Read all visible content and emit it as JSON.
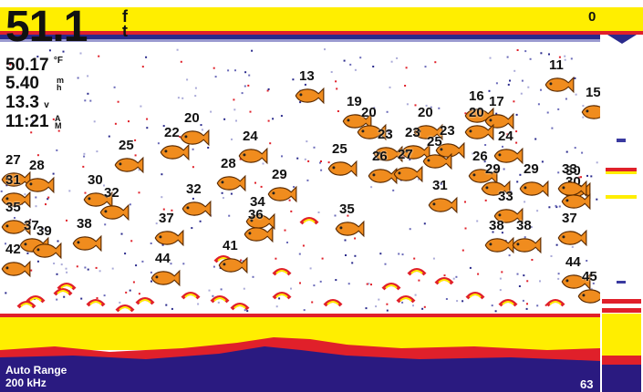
{
  "readouts": {
    "depth_value": "51.1",
    "depth_unit_top": "f",
    "depth_unit_bottom": "t",
    "temperature_value": "50.17",
    "temperature_unit": "°F",
    "speed_value": "5.40",
    "speed_unit_top": "m",
    "speed_unit_bottom": "h",
    "voltage_value": "13.3",
    "voltage_unit": "v",
    "time_value": "11:21",
    "time_unit_top": "A",
    "time_unit_bottom": "M"
  },
  "scale": {
    "top": "0",
    "bottom": "63"
  },
  "status": {
    "range_mode": "Auto Range",
    "frequency": "200 kHz"
  },
  "colors": {
    "surface_yellow": "#ffee00",
    "return_red": "#e0202a",
    "return_blue": "#2a2a8c",
    "fish_orange": "#f08c1e",
    "bottom_dark": "#2a1a80"
  },
  "fish_icon": "fish-icon",
  "fish": [
    {
      "depth": "13"
    },
    {
      "depth": "11"
    },
    {
      "depth": "15"
    },
    {
      "depth": "16"
    },
    {
      "depth": "17"
    },
    {
      "depth": "19"
    },
    {
      "depth": "20"
    },
    {
      "depth": "20"
    },
    {
      "depth": "20"
    },
    {
      "depth": "20"
    },
    {
      "depth": "22"
    },
    {
      "depth": "23"
    },
    {
      "depth": "23"
    },
    {
      "depth": "23"
    },
    {
      "depth": "24"
    },
    {
      "depth": "24"
    },
    {
      "depth": "25"
    },
    {
      "depth": "25"
    },
    {
      "depth": "25"
    },
    {
      "depth": "26"
    },
    {
      "depth": "26"
    },
    {
      "depth": "27"
    },
    {
      "depth": "27"
    },
    {
      "depth": "28"
    },
    {
      "depth": "28"
    },
    {
      "depth": "29"
    },
    {
      "depth": "29"
    },
    {
      "depth": "29"
    },
    {
      "depth": "30"
    },
    {
      "depth": "30"
    },
    {
      "depth": "30"
    },
    {
      "depth": "31"
    },
    {
      "depth": "31"
    },
    {
      "depth": "32"
    },
    {
      "depth": "32"
    },
    {
      "depth": "33"
    },
    {
      "depth": "33"
    },
    {
      "depth": "34"
    },
    {
      "depth": "35"
    },
    {
      "depth": "35"
    },
    {
      "depth": "36"
    },
    {
      "depth": "37"
    },
    {
      "depth": "37"
    },
    {
      "depth": "37"
    },
    {
      "depth": "38"
    },
    {
      "depth": "38"
    },
    {
      "depth": "38"
    },
    {
      "depth": "39"
    },
    {
      "depth": "41"
    },
    {
      "depth": "42"
    },
    {
      "depth": "44"
    },
    {
      "depth": "44"
    },
    {
      "depth": "45"
    }
  ]
}
